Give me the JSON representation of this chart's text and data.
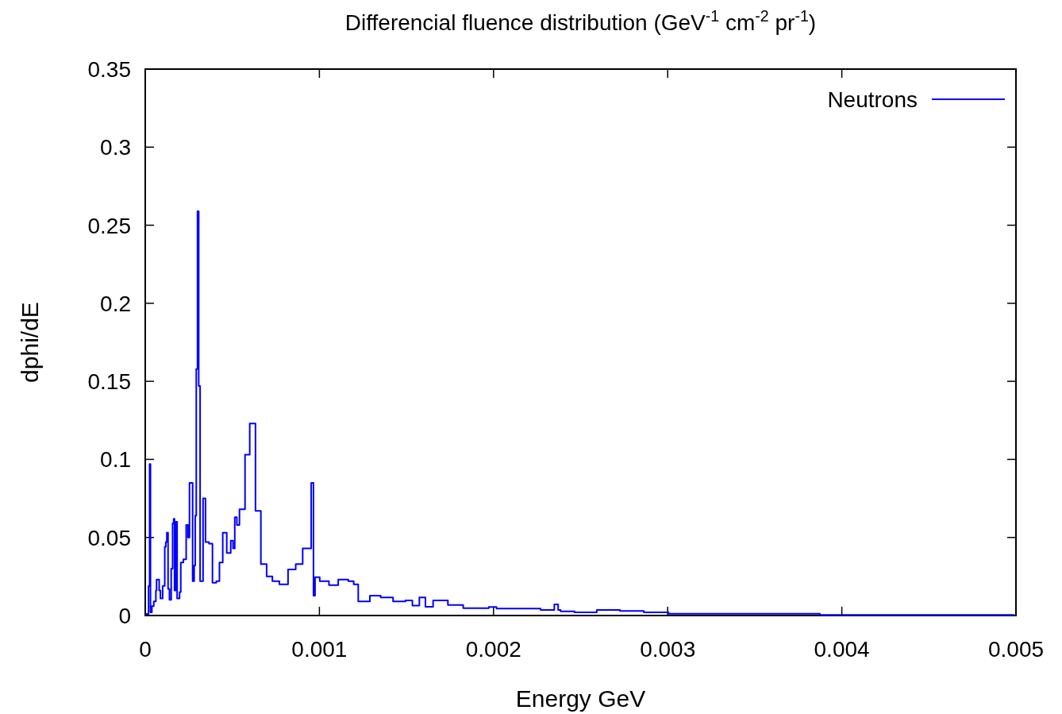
{
  "chart_data": {
    "type": "step",
    "title": "Differencial fluence distribution (GeV$^{-1}$ cm$^{-2}$ pr$^{-1}$)",
    "xlabel": "Energy GeV",
    "ylabel": "dphi/dE",
    "xlim": [
      0,
      0.005
    ],
    "xticks": [
      0,
      0.001,
      0.002,
      0.003,
      0.004,
      0.005
    ],
    "ylim": [
      0,
      0.35
    ],
    "yticks": [
      0,
      0.05,
      0.1,
      0.15,
      0.2,
      0.25,
      0.3,
      0.35
    ],
    "grid": false,
    "legend": "top right",
    "marker": "none",
    "line_style": "solid",
    "series": [
      {
        "name": "Neutrons",
        "color": "#0000ff",
        "x": [
          0,
          1.9e-05,
          2.5e-05,
          3e-05,
          3.8e-05,
          4.9e-05,
          6.1e-05,
          6.5e-05,
          8e-05,
          8.7e-05,
          0.0001,
          0.000112,
          0.000118,
          0.000124,
          0.000131,
          0.000139,
          0.000149,
          0.000157,
          0.000163,
          0.000168,
          0.000174,
          0.000183,
          0.000197,
          0.000204,
          0.000219,
          0.000235,
          0.000245,
          0.000254,
          0.000272,
          0.000281,
          0.000287,
          0.000293,
          0.0003,
          0.000307,
          0.000315,
          0.000332,
          0.000346,
          0.000366,
          0.000386,
          0.000408,
          0.000426,
          0.000445,
          0.000468,
          0.000491,
          0.000504,
          0.000514,
          0.000526,
          0.000541,
          0.000573,
          0.0006,
          0.000633,
          0.000664,
          0.000697,
          0.00073,
          0.00077,
          0.00082,
          0.000864,
          0.000904,
          0.000953,
          0.000966,
          0.000975,
          0.001002,
          0.001055,
          0.001108,
          0.001166,
          0.001197,
          0.001223,
          0.00129,
          0.001352,
          0.001423,
          0.001494,
          0.001534,
          0.001574,
          0.001609,
          0.001653,
          0.001738,
          0.001826,
          0.001973,
          0.002017,
          0.00227,
          0.002349,
          0.002371,
          0.002385,
          0.002465,
          0.002593,
          0.002726,
          0.002863,
          0.003005,
          0.003874,
          0.004991
        ],
        "values": [
          0.001,
          0.019,
          0.097,
          0.002,
          0.006,
          0.009,
          0.016,
          0.023,
          0.016,
          0.011,
          0.019,
          0.044,
          0.047,
          0.053,
          0.017,
          0.01,
          0.03,
          0.059,
          0.062,
          0.016,
          0.06,
          0.011,
          0.015,
          0.034,
          0.036,
          0.058,
          0.05,
          0.085,
          0.022,
          0.032,
          0.064,
          0.158,
          0.259,
          0.147,
          0.022,
          0.075,
          0.047,
          0.046,
          0.021,
          0.022,
          0.034,
          0.053,
          0.04,
          0.048,
          0.043,
          0.063,
          0.058,
          0.068,
          0.103,
          0.123,
          0.067,
          0.033,
          0.025,
          0.022,
          0.02,
          0.0295,
          0.033,
          0.043,
          0.085,
          0.0127,
          0.0245,
          0.022,
          0.0195,
          0.023,
          0.022,
          0.02,
          0.009,
          0.0127,
          0.0116,
          0.009,
          0.0097,
          0.0063,
          0.0116,
          0.0056,
          0.0097,
          0.0068,
          0.0047,
          0.0055,
          0.0045,
          0.0036,
          0.0071,
          0.0036,
          0.0027,
          0.002,
          0.0036,
          0.0029,
          0.002,
          0.0011,
          0.0004,
          0.0004
        ]
      }
    ]
  }
}
